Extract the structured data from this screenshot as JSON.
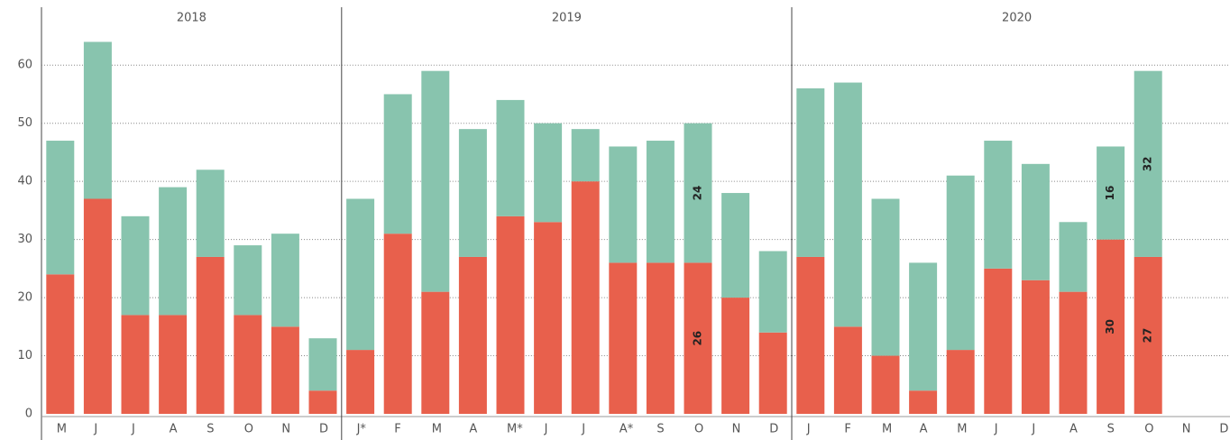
{
  "chart_data": [
    {
      "type": "bar",
      "stacked": true,
      "title": "2018",
      "categories": [
        "M",
        "J",
        "J",
        "A",
        "S",
        "O",
        "N",
        "D"
      ],
      "series": [
        {
          "color": "#e8604c",
          "values": [
            24,
            37,
            17,
            17,
            27,
            17,
            15,
            4
          ]
        },
        {
          "color": "#88c4ae",
          "values": [
            23,
            27,
            17,
            22,
            15,
            12,
            16,
            9
          ]
        }
      ],
      "ylim": [
        0,
        65
      ],
      "yticks": [
        0,
        10,
        20,
        30,
        40,
        50,
        60
      ],
      "grid": true
    },
    {
      "type": "bar",
      "stacked": true,
      "title": "2019",
      "categories": [
        "J*",
        "F",
        "M",
        "A",
        "M*",
        "J",
        "J",
        "A*",
        "S",
        "O",
        "N",
        "D"
      ],
      "series": [
        {
          "color": "#e8604c",
          "values": [
            11,
            31,
            21,
            27,
            34,
            33,
            40,
            26,
            26,
            26,
            20,
            14
          ],
          "value_labels": [
            null,
            null,
            null,
            null,
            null,
            null,
            null,
            null,
            null,
            "26",
            null,
            null
          ]
        },
        {
          "color": "#88c4ae",
          "values": [
            26,
            24,
            38,
            22,
            20,
            17,
            9,
            20,
            21,
            24,
            18,
            14
          ],
          "value_labels": [
            null,
            null,
            null,
            null,
            null,
            null,
            null,
            null,
            null,
            "24",
            null,
            null
          ]
        }
      ],
      "ylim": [
        0,
        65
      ],
      "yticks": [
        0,
        10,
        20,
        30,
        40,
        50,
        60
      ],
      "grid": true
    },
    {
      "type": "bar",
      "stacked": true,
      "title": "2020",
      "categories": [
        "J",
        "F",
        "M",
        "A",
        "M",
        "J",
        "J",
        "A",
        "S",
        "O",
        "N",
        "D"
      ],
      "series": [
        {
          "color": "#e8604c",
          "values": [
            27,
            15,
            10,
            4,
            11,
            25,
            23,
            21,
            30,
            27,
            null,
            null
          ],
          "value_labels": [
            null,
            null,
            null,
            null,
            null,
            null,
            null,
            null,
            "30",
            "27",
            null,
            null
          ]
        },
        {
          "color": "#88c4ae",
          "values": [
            29,
            42,
            27,
            22,
            30,
            22,
            20,
            12,
            16,
            32,
            null,
            null
          ],
          "value_labels": [
            null,
            null,
            null,
            null,
            null,
            null,
            null,
            null,
            "16",
            "32",
            null,
            null
          ]
        }
      ],
      "ylim": [
        0,
        65
      ],
      "yticks": [
        0,
        10,
        20,
        30,
        40,
        50,
        60
      ],
      "grid": true
    }
  ]
}
